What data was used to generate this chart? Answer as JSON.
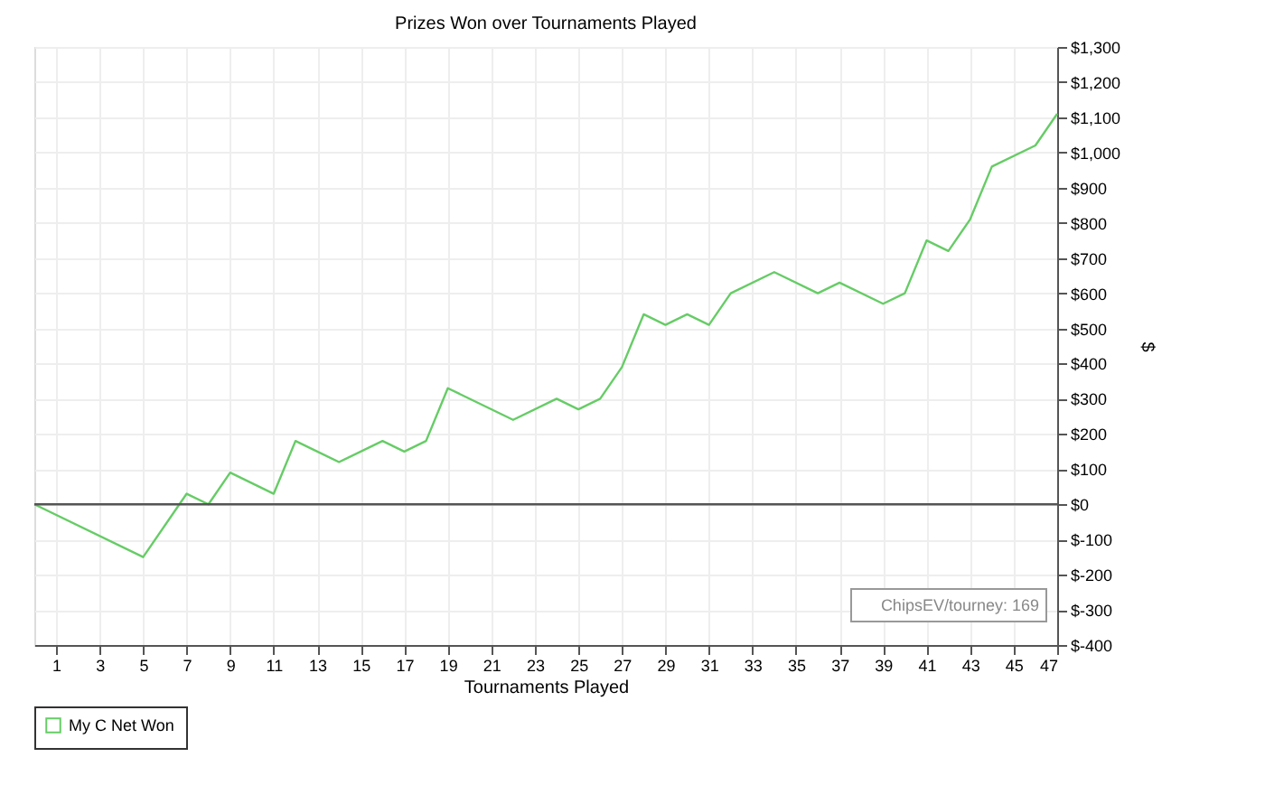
{
  "chart_data": {
    "type": "line",
    "title": "Prizes Won over Tournaments Played",
    "xlabel": "Tournaments Played",
    "ylabel": "$",
    "x": [
      0,
      5,
      7,
      8,
      9,
      11,
      12,
      14,
      16,
      17,
      18,
      19,
      22,
      24,
      25,
      26,
      27,
      28,
      29,
      30,
      31,
      32,
      34,
      36,
      37,
      39,
      40,
      41,
      42,
      43,
      44,
      46,
      47
    ],
    "series": [
      {
        "name": "My C Net Won",
        "color": "#66cc66",
        "values": [
          0,
          -150,
          30,
          0,
          90,
          30,
          180,
          120,
          180,
          150,
          180,
          330,
          240,
          300,
          270,
          300,
          390,
          540,
          510,
          540,
          510,
          600,
          660,
          600,
          630,
          570,
          600,
          750,
          720,
          810,
          960,
          1020,
          1110
        ]
      }
    ],
    "xlim": [
      0,
      47
    ],
    "xticks": [
      1,
      3,
      5,
      7,
      9,
      11,
      13,
      15,
      17,
      19,
      21,
      23,
      25,
      27,
      29,
      31,
      33,
      35,
      37,
      39,
      41,
      43,
      45,
      47
    ],
    "ylim": [
      -400,
      1300
    ],
    "yticks": [
      {
        "value": -400,
        "label": "$-400"
      },
      {
        "value": -300,
        "label": "$-300"
      },
      {
        "value": -200,
        "label": "$-200"
      },
      {
        "value": -100,
        "label": "$-100"
      },
      {
        "value": 0,
        "label": "$0"
      },
      {
        "value": 100,
        "label": "$100"
      },
      {
        "value": 200,
        "label": "$200"
      },
      {
        "value": 300,
        "label": "$300"
      },
      {
        "value": 400,
        "label": "$400"
      },
      {
        "value": 500,
        "label": "$500"
      },
      {
        "value": 600,
        "label": "$600"
      },
      {
        "value": 700,
        "label": "$700"
      },
      {
        "value": 800,
        "label": "$800"
      },
      {
        "value": 900,
        "label": "$900"
      },
      {
        "value": 1000,
        "label": "$1,000"
      },
      {
        "value": 1100,
        "label": "$1,100"
      },
      {
        "value": 1200,
        "label": "$1,200"
      },
      {
        "value": 1300,
        "label": "$1,300"
      }
    ],
    "ref_lines": [
      {
        "axis": "y",
        "value": 0,
        "label": null,
        "color": "#555555"
      }
    ],
    "annotations": [
      "ChipsEV/tourney: 169"
    ],
    "grid": true,
    "legend": "bottom left",
    "marker": "none",
    "line_style": "solid"
  }
}
